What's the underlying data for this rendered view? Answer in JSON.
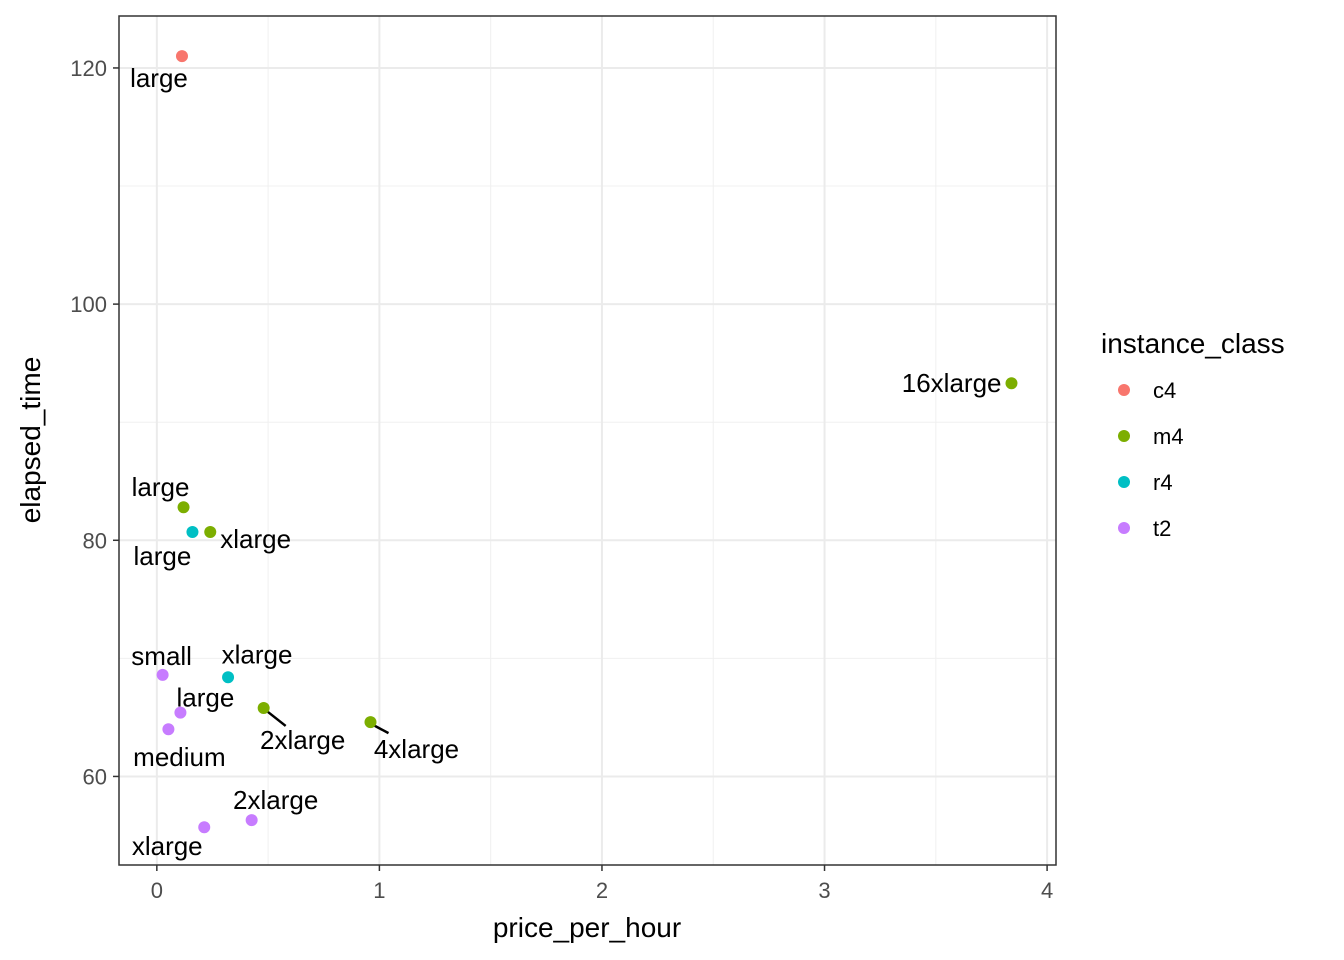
{
  "chart_data": {
    "type": "scatter",
    "xlabel": "price_per_hour",
    "ylabel": "elapsed_time",
    "xlim": [
      -0.17,
      4.04
    ],
    "ylim": [
      52.5,
      124.4
    ],
    "x_ticks": [
      0,
      1,
      2,
      3,
      4
    ],
    "y_ticks": [
      60,
      80,
      100,
      120
    ],
    "grid": true,
    "legend": {
      "title": "instance_class",
      "placement": "right",
      "items": [
        {
          "label": "c4",
          "color": "#F8766D"
        },
        {
          "label": "m4",
          "color": "#7CAE00"
        },
        {
          "label": "r4",
          "color": "#00BFC4"
        },
        {
          "label": "t2",
          "color": "#C77CFF"
        }
      ]
    },
    "series": [
      {
        "name": "c4",
        "color": "#F8766D",
        "points": [
          {
            "x": 0.113,
            "y": 121.0,
            "label": "large"
          }
        ]
      },
      {
        "name": "m4",
        "color": "#7CAE00",
        "points": [
          {
            "x": 3.84,
            "y": 93.3,
            "label": "16xlarge"
          },
          {
            "x": 0.12,
            "y": 82.8,
            "label": "large"
          },
          {
            "x": 0.24,
            "y": 80.7,
            "label": "xlarge"
          },
          {
            "x": 0.48,
            "y": 65.8,
            "label": "2xlarge"
          },
          {
            "x": 0.96,
            "y": 64.6,
            "label": "4xlarge"
          }
        ]
      },
      {
        "name": "r4",
        "color": "#00BFC4",
        "points": [
          {
            "x": 0.16,
            "y": 80.7,
            "label": "large"
          },
          {
            "x": 0.32,
            "y": 68.4,
            "label": "xlarge"
          }
        ]
      },
      {
        "name": "t2",
        "color": "#C77CFF",
        "points": [
          {
            "x": 0.026,
            "y": 68.6,
            "label": "small"
          },
          {
            "x": 0.106,
            "y": 65.4,
            "label": "large"
          },
          {
            "x": 0.052,
            "y": 64.0,
            "label": "medium"
          },
          {
            "x": 0.213,
            "y": 55.7,
            "label": "xlarge"
          },
          {
            "x": 0.426,
            "y": 56.3,
            "label": "2xlarge"
          }
        ]
      }
    ]
  }
}
